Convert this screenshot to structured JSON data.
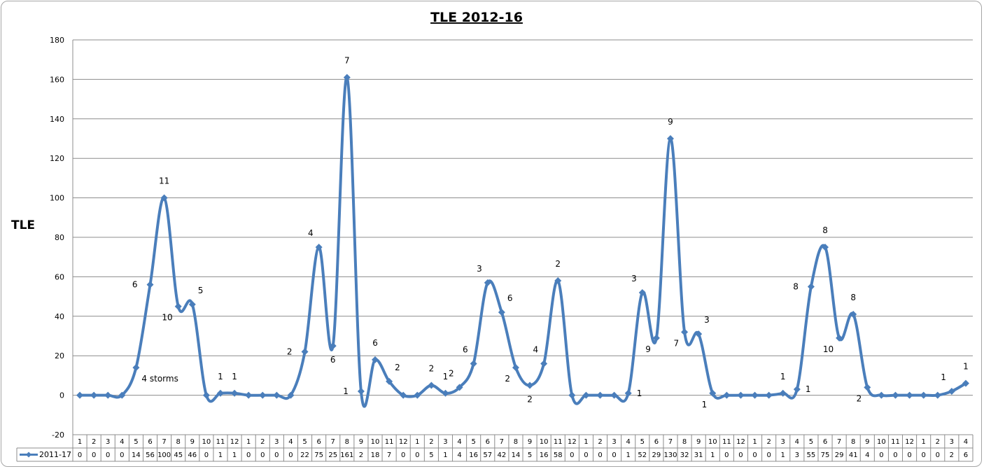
{
  "chart_data": {
    "type": "line",
    "title": "TLE 2012-16",
    "ylabel": "TLE",
    "xlabel": "",
    "ylim": [
      -20,
      180
    ],
    "ytick_step": 20,
    "grid": true,
    "series_color": "#4a7ebb",
    "categories": [
      "1",
      "2",
      "3",
      "4",
      "5",
      "6",
      "7",
      "8",
      "9",
      "10",
      "11",
      "12",
      "1",
      "2",
      "3",
      "4",
      "5",
      "6",
      "7",
      "8",
      "9",
      "10",
      "11",
      "12",
      "1",
      "2",
      "3",
      "4",
      "5",
      "6",
      "7",
      "8",
      "9",
      "10",
      "11",
      "12",
      "1",
      "2",
      "3",
      "4",
      "5",
      "6",
      "7",
      "8",
      "9",
      "10",
      "11",
      "12",
      "1",
      "2",
      "3",
      "4",
      "5",
      "6",
      "7",
      "8",
      "9",
      "10",
      "11",
      "12",
      "1",
      "2",
      "3",
      "4"
    ],
    "series": [
      {
        "name": "2011-17",
        "values": [
          0,
          0,
          0,
          0,
          14,
          56,
          100,
          45,
          46,
          0,
          1,
          1,
          0,
          0,
          0,
          0,
          22,
          75,
          25,
          161,
          2,
          18,
          7,
          0,
          0,
          5,
          1,
          4,
          16,
          57,
          42,
          14,
          5,
          16,
          58,
          0,
          0,
          0,
          0,
          1,
          52,
          29,
          130,
          32,
          31,
          1,
          0,
          0,
          0,
          0,
          1,
          3,
          55,
          75,
          29,
          41,
          4,
          0,
          0,
          0,
          0,
          0,
          2,
          6
        ]
      }
    ],
    "annotations": [
      {
        "index": 5,
        "text": "6",
        "pos": "left"
      },
      {
        "index": 6,
        "text": "11",
        "pos": "above"
      },
      {
        "index": 7,
        "text": "10",
        "pos": "below-left"
      },
      {
        "index": 8,
        "text": "5",
        "pos": "above-right"
      },
      {
        "index": 4,
        "text": "4 storms",
        "pos": "below-right"
      },
      {
        "index": 10,
        "text": "1",
        "pos": "above"
      },
      {
        "index": 11,
        "text": "1",
        "pos": "above"
      },
      {
        "index": 16,
        "text": "2",
        "pos": "left"
      },
      {
        "index": 17,
        "text": "4",
        "pos": "above-left"
      },
      {
        "index": 18,
        "text": "6",
        "pos": "below"
      },
      {
        "index": 19,
        "text": "7",
        "pos": "above"
      },
      {
        "index": 20,
        "text": "1",
        "pos": "left"
      },
      {
        "index": 21,
        "text": "6",
        "pos": "above"
      },
      {
        "index": 22,
        "text": "2",
        "pos": "above-right"
      },
      {
        "index": 25,
        "text": "2",
        "pos": "above"
      },
      {
        "index": 26,
        "text": "1",
        "pos": "above"
      },
      {
        "index": 27,
        "text": "2",
        "pos": "above-left"
      },
      {
        "index": 28,
        "text": "6",
        "pos": "above-left"
      },
      {
        "index": 29,
        "text": "3",
        "pos": "above-left"
      },
      {
        "index": 30,
        "text": "6",
        "pos": "above-right"
      },
      {
        "index": 31,
        "text": "2",
        "pos": "below-left"
      },
      {
        "index": 32,
        "text": "2",
        "pos": "below"
      },
      {
        "index": 33,
        "text": "4",
        "pos": "above-left"
      },
      {
        "index": 34,
        "text": "2",
        "pos": "above"
      },
      {
        "index": 39,
        "text": "1",
        "pos": "right"
      },
      {
        "index": 40,
        "text": "3",
        "pos": "above-left"
      },
      {
        "index": 41,
        "text": "9",
        "pos": "below-left"
      },
      {
        "index": 42,
        "text": "9",
        "pos": "above"
      },
      {
        "index": 43,
        "text": "7",
        "pos": "below-left"
      },
      {
        "index": 44,
        "text": "3",
        "pos": "above-right"
      },
      {
        "index": 45,
        "text": "1",
        "pos": "below-left"
      },
      {
        "index": 50,
        "text": "1",
        "pos": "above"
      },
      {
        "index": 51,
        "text": "1",
        "pos": "right"
      },
      {
        "index": 52,
        "text": "8",
        "pos": "left"
      },
      {
        "index": 53,
        "text": "8",
        "pos": "above"
      },
      {
        "index": 54,
        "text": "10",
        "pos": "below-left"
      },
      {
        "index": 55,
        "text": "8",
        "pos": "above"
      },
      {
        "index": 56,
        "text": "2",
        "pos": "below-left"
      },
      {
        "index": 62,
        "text": "1",
        "pos": "above-left"
      },
      {
        "index": 63,
        "text": "1",
        "pos": "above"
      }
    ]
  }
}
